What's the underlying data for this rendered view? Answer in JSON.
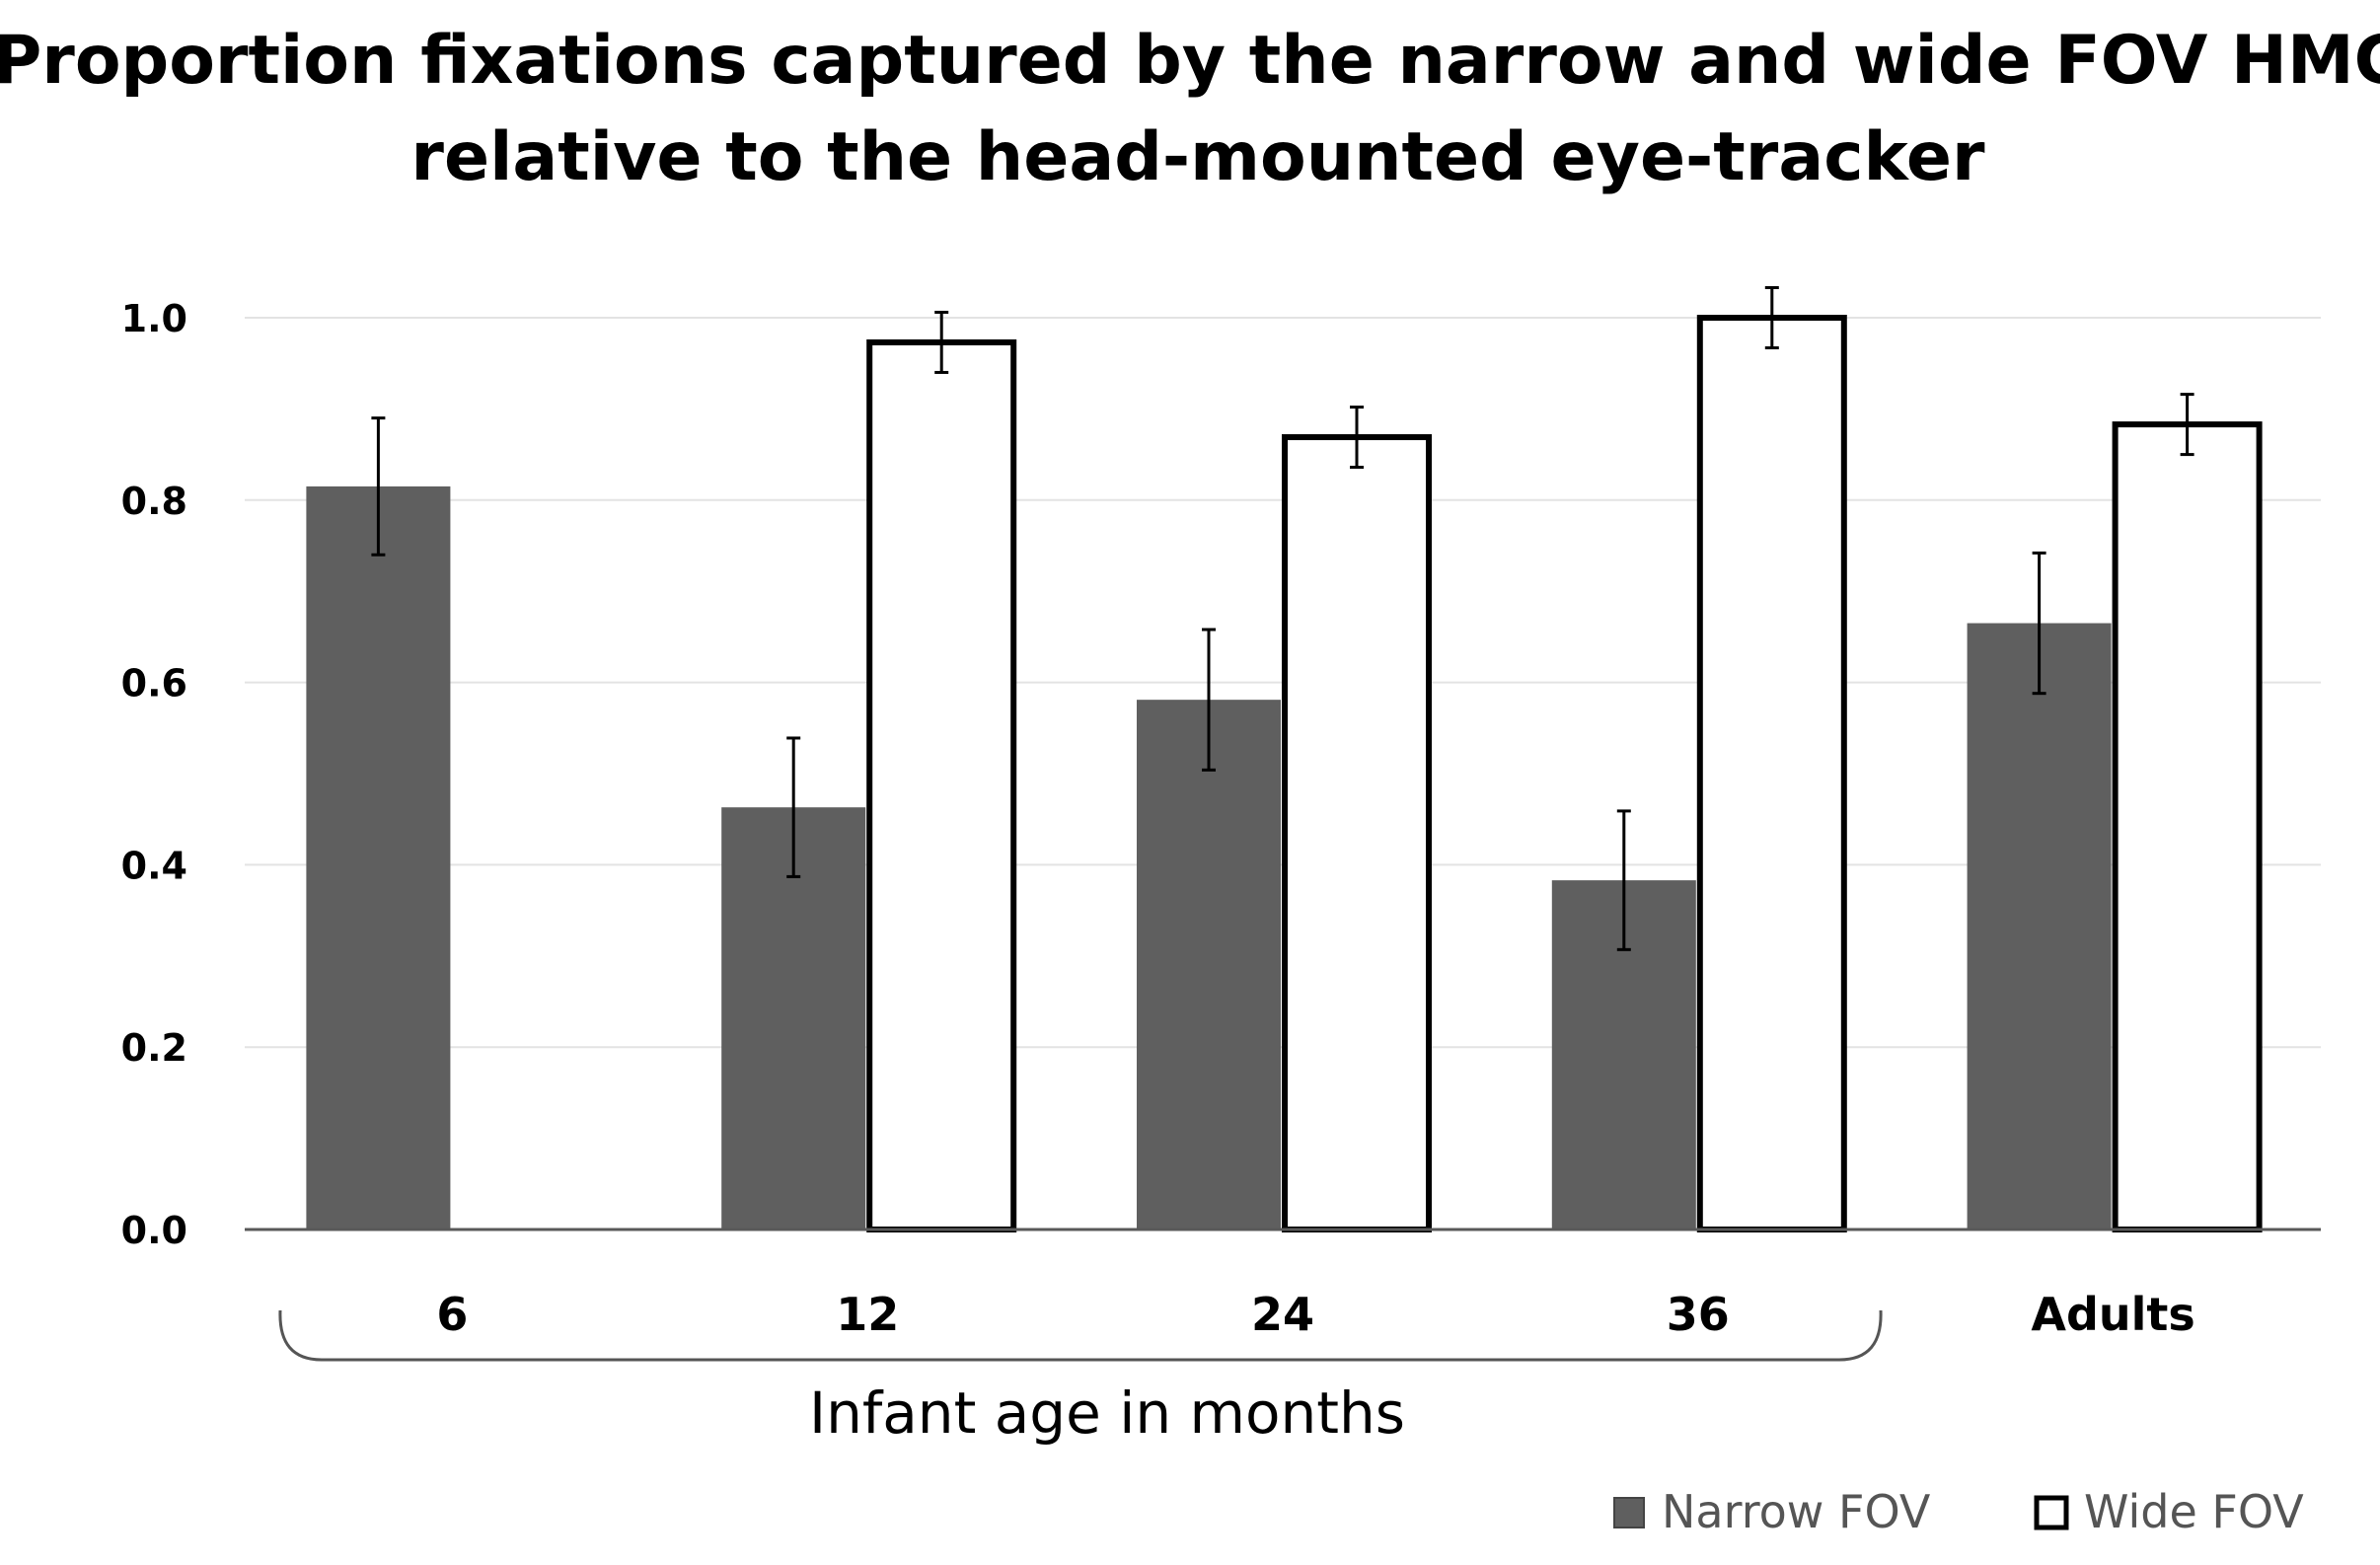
{
  "chart_data": {
    "type": "bar",
    "title": "Proportion fixations captured by the narrow and wide FOV HMC relative to the head-mounted eye-tracker",
    "title_lines": [
      "Proportion fixations captured by the narrow and wide FOV HMC",
      "relative to the head-mounted eye-tracker"
    ],
    "xlabel": "Infant age in months",
    "ylabel": "",
    "ylim": [
      0,
      1.0
    ],
    "yticks": [
      "0.0",
      "0.2",
      "0.4",
      "0.6",
      "0.8",
      "1.0"
    ],
    "ytick_values": [
      0,
      0.2,
      0.4,
      0.6,
      0.8,
      1.0
    ],
    "grid": true,
    "categories": [
      "6",
      "12",
      "24",
      "36",
      "Adults"
    ],
    "bracket_group": [
      "6",
      "12",
      "24",
      "36"
    ],
    "series": [
      {
        "name": "Narrow FOV",
        "color": "#5f5f5f",
        "values": [
          0.815,
          0.463,
          0.581,
          0.383,
          0.665
        ],
        "errors": [
          0.075,
          0.076,
          0.077,
          0.076,
          0.077
        ]
      },
      {
        "name": "Wide FOV",
        "color": "#ffffff",
        "values": [
          null,
          0.973,
          0.869,
          1.0,
          0.883
        ],
        "errors": [
          null,
          0.033,
          0.033,
          0.033,
          0.033
        ]
      }
    ],
    "legend_position": "bottom-right"
  }
}
